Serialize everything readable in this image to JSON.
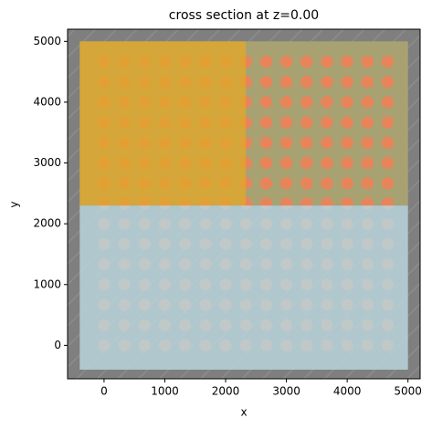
{
  "chart_data": {
    "type": "structure_plot",
    "title": "cross section at z=0.00",
    "xlabel": "x",
    "ylabel": "y",
    "xlim": [
      -600,
      5200
    ],
    "ylim": [
      -550,
      5200
    ],
    "xticks": [
      0,
      1000,
      2000,
      3000,
      4000,
      5000
    ],
    "yticks": [
      0,
      1000,
      2000,
      3000,
      4000,
      5000
    ],
    "background": "#7f7f7f",
    "regions": [
      {
        "color": "#a8a272",
        "opacity": 1,
        "x": [
          -400,
          5000
        ],
        "y": [
          2300,
          5000
        ]
      },
      {
        "color": "#e0a82a",
        "opacity": 0.8,
        "x": [
          -400,
          2330
        ],
        "y": [
          2300,
          5000
        ]
      },
      {
        "color": "#b9d3dc",
        "opacity": 0.85,
        "x": [
          -400,
          5000
        ],
        "y": [
          -400,
          2300
        ]
      }
    ],
    "circles": {
      "color": "#e8845a",
      "r": 100,
      "x": [
        0,
        333,
        667,
        1000,
        1333,
        1667,
        2000,
        2333,
        2667,
        3000,
        3333,
        3667,
        4000,
        4333,
        4667
      ],
      "y": [
        0,
        333,
        667,
        1000,
        1333,
        1667,
        2000,
        2333,
        2667,
        3000,
        3333,
        3667,
        4000,
        4333,
        4667
      ]
    }
  }
}
